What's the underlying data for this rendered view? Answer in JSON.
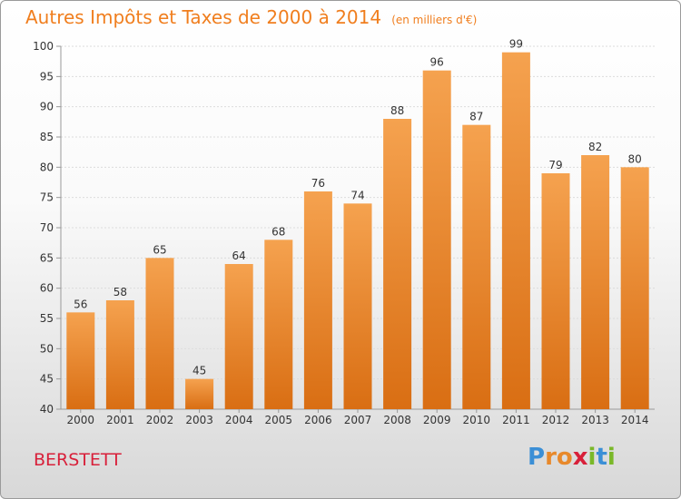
{
  "header": {
    "title": "Autres Impôts et Taxes de 2000 à 2014",
    "unit": "(en milliers d'€)"
  },
  "commune": "BERSTETT",
  "logo": {
    "letters": [
      "P",
      "r",
      "o",
      "x",
      "i",
      "t",
      "i"
    ],
    "colors": [
      "#3b8fd6",
      "#e8892b",
      "#e8892b",
      "#d8203a",
      "#7ab829",
      "#3b8fd6",
      "#7ab829"
    ]
  },
  "colors": {
    "bar_top": "#f5a24f",
    "bar_bottom": "#d96e13",
    "title": "#f07e1e",
    "commune": "#d8203a"
  },
  "chart_data": {
    "type": "bar",
    "categories": [
      "2000",
      "2001",
      "2002",
      "2003",
      "2004",
      "2005",
      "2006",
      "2007",
      "2008",
      "2009",
      "2010",
      "2011",
      "2012",
      "2013",
      "2014"
    ],
    "values": [
      56,
      58,
      65,
      45,
      64,
      68,
      76,
      74,
      88,
      96,
      87,
      99,
      79,
      82,
      80
    ],
    "ylim": [
      40,
      100
    ],
    "yticks": [
      40,
      45,
      50,
      55,
      60,
      65,
      70,
      75,
      80,
      85,
      90,
      95,
      100
    ],
    "grid": true
  }
}
